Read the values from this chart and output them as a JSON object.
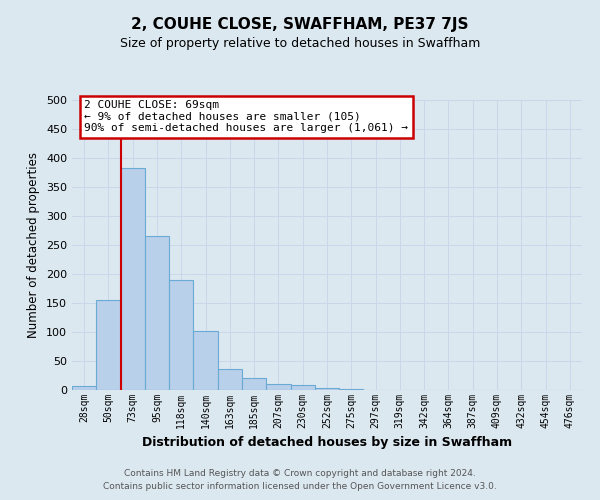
{
  "title": "2, COUHE CLOSE, SWAFFHAM, PE37 7JS",
  "subtitle": "Size of property relative to detached houses in Swaffham",
  "xlabel": "Distribution of detached houses by size in Swaffham",
  "ylabel": "Number of detached properties",
  "bar_labels": [
    "28sqm",
    "50sqm",
    "73sqm",
    "95sqm",
    "118sqm",
    "140sqm",
    "163sqm",
    "185sqm",
    "207sqm",
    "230sqm",
    "252sqm",
    "275sqm",
    "297sqm",
    "319sqm",
    "342sqm",
    "364sqm",
    "387sqm",
    "409sqm",
    "432sqm",
    "454sqm",
    "476sqm"
  ],
  "bar_values": [
    7,
    155,
    383,
    265,
    190,
    101,
    37,
    21,
    11,
    9,
    4,
    1,
    0,
    0,
    0,
    0,
    0,
    0,
    0,
    0,
    0
  ],
  "bar_color": "#b8d0ea",
  "bar_edge_color": "#6aaad4",
  "grid_color": "#c8d8ea",
  "background_color": "#dce8f0",
  "plot_bg_color": "#dce8f0",
  "red_line_x": 2,
  "annotation_title": "2 COUHE CLOSE: 69sqm",
  "annotation_line1": "← 9% of detached houses are smaller (105)",
  "annotation_line2": "90% of semi-detached houses are larger (1,061) →",
  "annotation_box_color": "#ffffff",
  "annotation_box_edge": "#cc0000",
  "red_line_color": "#cc0000",
  "ylim": [
    0,
    500
  ],
  "yticks": [
    0,
    50,
    100,
    150,
    200,
    250,
    300,
    350,
    400,
    450,
    500
  ],
  "footer_line1": "Contains HM Land Registry data © Crown copyright and database right 2024.",
  "footer_line2": "Contains public sector information licensed under the Open Government Licence v3.0."
}
